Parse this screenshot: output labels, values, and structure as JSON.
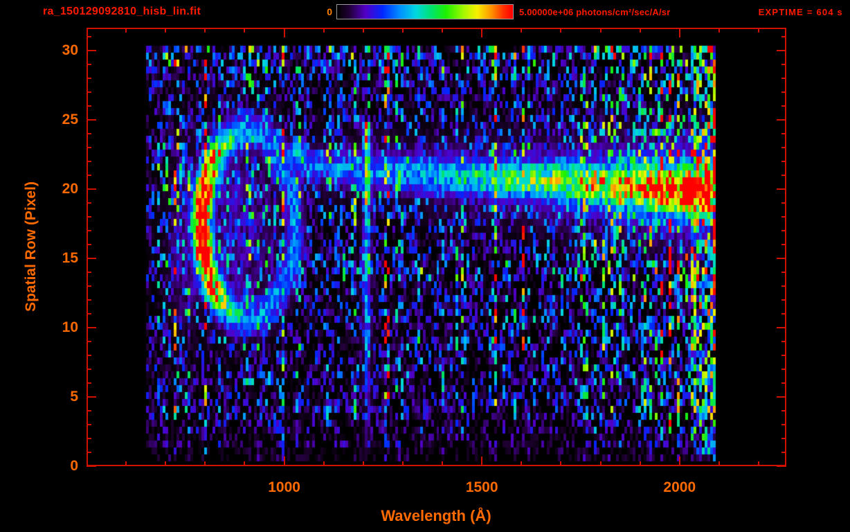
{
  "header": {
    "filename": "ra_150129092810_hisb_lin.fit",
    "colorbar_min_label": "0",
    "colorbar_max_label": "5.00000e+06 photons/cm²/sec/A/sr",
    "exptime_label": "EXPTIME = 604 s"
  },
  "style": {
    "text_red": "#ff1a00",
    "text_orange": "#ff6a00",
    "axis_color": "#d21000",
    "background": "#000000"
  },
  "chart_data": {
    "type": "heatmap",
    "title": "ra_150129092810_hisb_lin.fit",
    "xlabel": "Wavelength (Å)",
    "ylabel": "Spatial Row (Pixel)",
    "xlim": [
      500,
      2270
    ],
    "ylim": [
      0,
      31.65
    ],
    "xticks": [
      1000,
      1500,
      2000
    ],
    "xtick_minor_step": 100,
    "yticks": [
      0,
      5,
      10,
      15,
      20,
      25,
      30
    ],
    "ytick_minor_step": 1,
    "grid": "off",
    "legend": "off",
    "colorbar": {
      "min": 0,
      "max": 5000000,
      "max_label": "5.00000e+06",
      "units": "photons/cm²/sec/A/sr",
      "colormap": "rainbow"
    },
    "exposure_time_s": 604,
    "colormap_stops": [
      [
        0.0,
        "#000000"
      ],
      [
        0.07,
        "#23003a"
      ],
      [
        0.16,
        "#5200c8"
      ],
      [
        0.26,
        "#0028ff"
      ],
      [
        0.36,
        "#0092ff"
      ],
      [
        0.45,
        "#00d8e0"
      ],
      [
        0.54,
        "#00e46a"
      ],
      [
        0.62,
        "#1ef000"
      ],
      [
        0.72,
        "#a6f800"
      ],
      [
        0.8,
        "#f8ee00"
      ],
      [
        0.88,
        "#ff9400"
      ],
      [
        0.95,
        "#ff2e00"
      ],
      [
        1.0,
        "#ff0000"
      ]
    ],
    "data_extent": {
      "x": [
        650,
        2088
      ],
      "y": [
        0.35,
        30.3
      ]
    },
    "bin": {
      "wavelength": 7,
      "row": 0.5
    },
    "row_gain": [
      0.25,
      0.45,
      0.6,
      0.9,
      0.85,
      0.9,
      1.0,
      0.85,
      0.95,
      0.95,
      1.05,
      1.0,
      1.0,
      1.35,
      1.25,
      1.05,
      1.05,
      1.1,
      1.25,
      1.3,
      1.3,
      1.3,
      1.25,
      1.2,
      1.05,
      0.95,
      0.95,
      1.05,
      1.2,
      1.45,
      1.45,
      0.5
    ],
    "features": [
      {
        "kind": "ring",
        "name": "bright-crescent-airglow",
        "w0": 905,
        "r0": 17.2,
        "rw": 118,
        "rr": 6.7,
        "thick": 0.2,
        "amp": 0.85,
        "min_side": 0.42,
        "core_amp": 0.6
      },
      {
        "kind": "vline",
        "name": "lyman-alpha-emission-line",
        "w0": 1205,
        "width": 7,
        "rows": [
          [
            23.2,
            24.4,
            0.6
          ],
          [
            18.5,
            23.2,
            0.55
          ],
          [
            14,
            18.5,
            0.32
          ],
          [
            8,
            14,
            0.26
          ],
          [
            4,
            8,
            0.18
          ],
          [
            0.5,
            4,
            0.07
          ]
        ]
      },
      {
        "kind": "trace",
        "name": "target-spectral-trace",
        "w_ref": 1250,
        "center_ref": 21.0,
        "center_slope": -0.00173,
        "sigma0": 1.05,
        "sigma_slope": 0.0006,
        "stops": [
          [
            930,
            0
          ],
          [
            980,
            0.22
          ],
          [
            1250,
            0.3
          ],
          [
            1500,
            0.45
          ],
          [
            1750,
            0.62
          ],
          [
            1900,
            0.8
          ],
          [
            2000,
            0.95
          ],
          [
            2040,
            1.08
          ],
          [
            2076,
            1.08
          ],
          [
            2082,
            0
          ]
        ]
      },
      {
        "kind": "blob",
        "name": "emission-patch-1030",
        "w0": 1030,
        "r0": 22.4,
        "sw": 26,
        "sr": 1.1,
        "amp": 0.42
      },
      {
        "kind": "blob",
        "name": "emission-patch-965",
        "w0": 965,
        "r0": 22.0,
        "sw": 18,
        "sr": 0.9,
        "amp": 0.3
      },
      {
        "kind": "blob",
        "name": "emission-patch-1150",
        "w0": 1150,
        "r0": 22.6,
        "sw": 16,
        "sr": 0.8,
        "amp": 0.22
      },
      {
        "kind": "blob",
        "name": "crescent-halo",
        "w0": 860,
        "r0": 17.0,
        "sw": 130,
        "sr": 6.5,
        "amp": 0.16
      },
      {
        "kind": "blob",
        "name": "left-edge-halo",
        "w0": 745,
        "r0": 15.5,
        "sw": 45,
        "sr": 6.5,
        "amp": 0.14
      },
      {
        "kind": "burst",
        "name": "detector-edge-burst",
        "w_min": 2026,
        "w_max": 2086,
        "density": 0.7,
        "amp": 0.95
      }
    ]
  }
}
